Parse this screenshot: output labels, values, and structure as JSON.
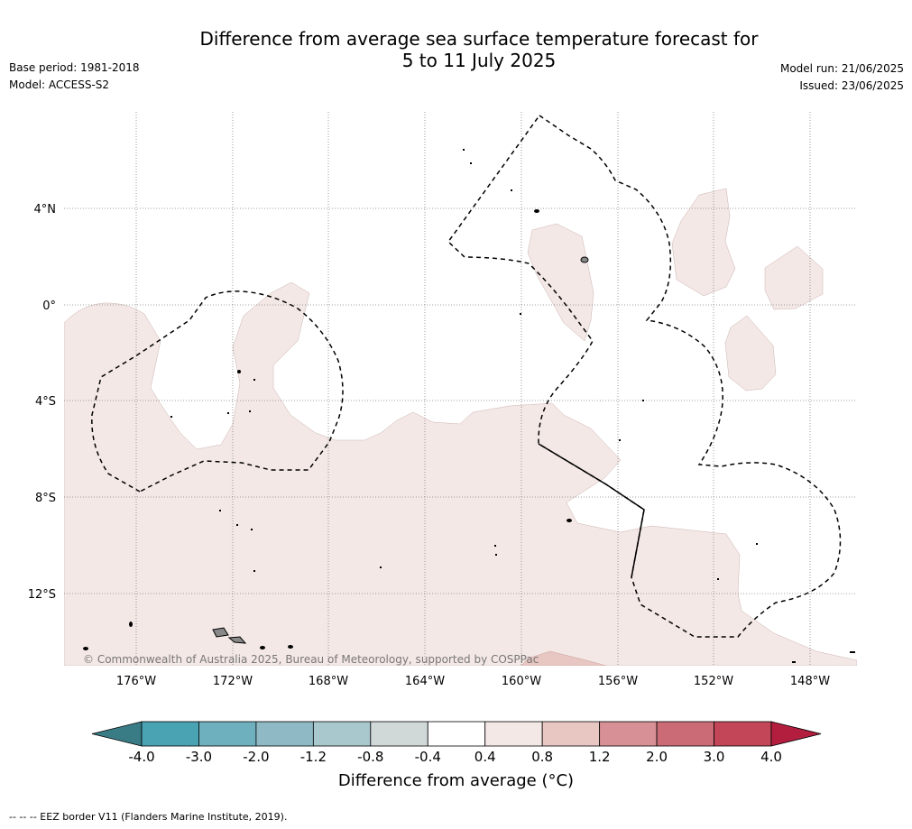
{
  "title_line1": "Difference from average sea surface temperature forecast for",
  "title_line2": "5 to 11 July 2025",
  "base_period": "Base period: 1981-2018",
  "model": "Model: ACCESS-S2",
  "model_run": "Model run: 21/06/2025",
  "issued": "Issued: 23/06/2025",
  "credit": "© Commonwealth of Australia 2025, Bureau of Meteorology, supported by COSPPac",
  "lon_ticks": [
    "176°W",
    "172°W",
    "168°W",
    "164°W",
    "160°W",
    "156°W",
    "152°W",
    "148°W"
  ],
  "lat_ticks": [
    "4°N",
    "0°",
    "4°S",
    "8°S",
    "12°S"
  ],
  "colorbar": {
    "title": "Difference from average (°C)",
    "ticks": [
      "-4.0",
      "-3.0",
      "-2.0",
      "-1.2",
      "-0.8",
      "-0.4",
      "0.4",
      "0.8",
      "1.2",
      "2.0",
      "3.0",
      "4.0"
    ],
    "colors": [
      "#3a7c86",
      "#4aa3b2",
      "#6eb0bd",
      "#8fb9c4",
      "#a9c8cd",
      "#d1d8d8",
      "#ffffff",
      "#f4e8e6",
      "#e8c6c1",
      "#d69096",
      "#cb6b75",
      "#c34658",
      "#b31e3f"
    ]
  },
  "footer": "--  --  -- EEZ border V11 (Flanders Marine Institute, 2019).",
  "colors": {
    "anomaly_04_08": "#f4e8e6",
    "anomaly_08_12": "#e8c6c1",
    "grid": "#808080",
    "eez": "#000000"
  }
}
